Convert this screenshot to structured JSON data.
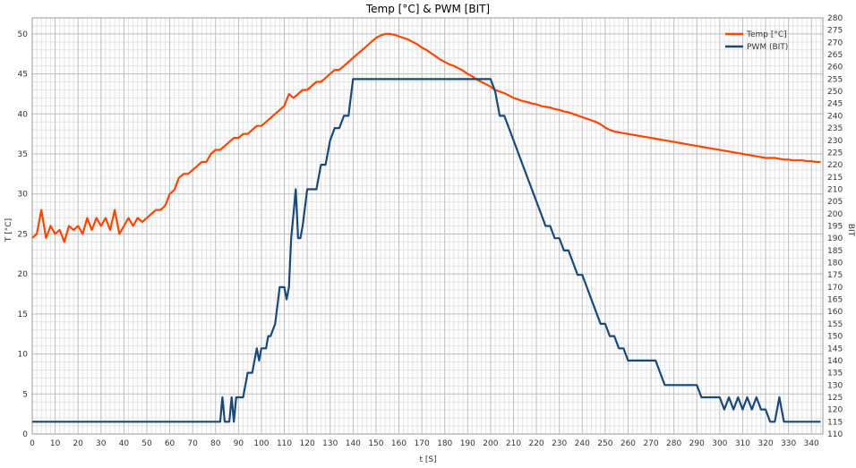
{
  "chart_data": {
    "type": "line",
    "title": "Temp [°C] & PWM [BIT]",
    "xlabel": "t [S]",
    "ylabel_left": "T [°C]",
    "ylabel_right": "BIT",
    "xlim": [
      0,
      345
    ],
    "ylim_left": [
      0,
      52
    ],
    "ylim_right": [
      110,
      280
    ],
    "x_ticks": [
      0,
      10,
      20,
      30,
      40,
      50,
      60,
      70,
      80,
      90,
      100,
      110,
      120,
      130,
      140,
      150,
      160,
      170,
      180,
      190,
      200,
      210,
      220,
      230,
      240,
      250,
      260,
      270,
      280,
      290,
      300,
      310,
      320,
      330,
      340
    ],
    "y_left_ticks": [
      0,
      5,
      10,
      15,
      20,
      25,
      30,
      35,
      40,
      45,
      50
    ],
    "y_right_ticks": [
      110,
      115,
      120,
      125,
      130,
      135,
      140,
      145,
      150,
      155,
      160,
      165,
      170,
      175,
      180,
      185,
      190,
      195,
      200,
      205,
      210,
      215,
      220,
      225,
      230,
      235,
      240,
      245,
      250,
      255,
      260,
      265,
      270,
      275,
      280
    ],
    "grid": true,
    "legend_position": "top-right",
    "series": [
      {
        "name": "Temp [°C]",
        "axis": "left",
        "color": "#ff4500",
        "x": [
          0,
          2,
          4,
          6,
          8,
          10,
          12,
          14,
          16,
          18,
          20,
          22,
          24,
          26,
          28,
          30,
          32,
          34,
          36,
          38,
          40,
          42,
          44,
          46,
          48,
          50,
          52,
          54,
          56,
          58,
          60,
          62,
          64,
          66,
          68,
          70,
          72,
          74,
          76,
          78,
          80,
          82,
          84,
          86,
          88,
          90,
          92,
          94,
          96,
          98,
          100,
          102,
          104,
          106,
          108,
          110,
          112,
          114,
          116,
          118,
          120,
          122,
          124,
          126,
          128,
          130,
          132,
          134,
          136,
          138,
          140,
          142,
          144,
          146,
          148,
          150,
          152,
          154,
          156,
          158,
          160,
          162,
          164,
          166,
          168,
          170,
          172,
          174,
          176,
          178,
          180,
          182,
          184,
          186,
          188,
          190,
          192,
          194,
          196,
          198,
          200,
          202,
          204,
          206,
          208,
          210,
          212,
          214,
          216,
          218,
          220,
          222,
          224,
          226,
          228,
          230,
          232,
          234,
          236,
          238,
          240,
          242,
          244,
          246,
          248,
          250,
          252,
          254,
          256,
          258,
          260,
          262,
          264,
          266,
          268,
          270,
          272,
          274,
          276,
          278,
          280,
          282,
          284,
          286,
          288,
          290,
          292,
          294,
          296,
          298,
          300,
          302,
          304,
          306,
          308,
          310,
          312,
          314,
          316,
          318,
          320,
          322,
          324,
          326,
          328,
          330,
          332,
          334,
          336,
          338,
          340,
          342,
          344
        ],
        "values": [
          24.5,
          25,
          28,
          24.5,
          26,
          25,
          25.5,
          24,
          26,
          25.5,
          26,
          25,
          27,
          25.5,
          27,
          26,
          27,
          25.5,
          28,
          25,
          26,
          27,
          26,
          27,
          26.5,
          27,
          27.5,
          28,
          28,
          28.5,
          30,
          30.5,
          32,
          32.5,
          32.5,
          33,
          33.5,
          34,
          34,
          35,
          35.5,
          35.5,
          36,
          36.5,
          37,
          37,
          37.5,
          37.5,
          38,
          38.5,
          38.5,
          39,
          39.5,
          40,
          40.5,
          41,
          42.5,
          42,
          42.5,
          43,
          43,
          43.5,
          44,
          44,
          44.5,
          45,
          45.5,
          45.5,
          46,
          46.5,
          47,
          47.5,
          48,
          48.5,
          49,
          49.5,
          49.8,
          50,
          50,
          49.9,
          49.7,
          49.5,
          49.3,
          49,
          48.7,
          48.3,
          48,
          47.6,
          47.2,
          46.8,
          46.5,
          46.2,
          46,
          45.7,
          45.4,
          45,
          44.7,
          44.3,
          44,
          43.7,
          43.4,
          43,
          42.8,
          42.6,
          42.3,
          42,
          41.8,
          41.6,
          41.5,
          41.3,
          41.2,
          41,
          40.9,
          40.8,
          40.6,
          40.5,
          40.3,
          40.2,
          40,
          39.8,
          39.6,
          39.4,
          39.2,
          39,
          38.7,
          38.3,
          38,
          37.8,
          37.7,
          37.6,
          37.5,
          37.4,
          37.3,
          37.2,
          37.1,
          37,
          36.9,
          36.8,
          36.7,
          36.6,
          36.5,
          36.4,
          36.3,
          36.2,
          36.1,
          36,
          35.9,
          35.8,
          35.7,
          35.6,
          35.5,
          35.4,
          35.3,
          35.2,
          35.1,
          35,
          34.9,
          34.8,
          34.7,
          34.6,
          34.5,
          34.5,
          34.5,
          34.4,
          34.3,
          34.3,
          34.2,
          34.2,
          34.2,
          34.1,
          34.1,
          34,
          34
        ],
        "values_note_ignore": null
      },
      {
        "name": "PWM (BIT)",
        "axis": "right",
        "color": "#17497a",
        "x": [
          0,
          82,
          83,
          84,
          85,
          86,
          87,
          88,
          89,
          90,
          92,
          94,
          96,
          98,
          99,
          100,
          101,
          102,
          103,
          104,
          106,
          108,
          109,
          110,
          111,
          112,
          113,
          114,
          115,
          116,
          117,
          118,
          120,
          122,
          124,
          126,
          128,
          130,
          132,
          134,
          136,
          138,
          140,
          200,
          202,
          204,
          206,
          208,
          210,
          212,
          214,
          216,
          218,
          220,
          222,
          224,
          226,
          228,
          230,
          232,
          234,
          236,
          238,
          240,
          242,
          244,
          246,
          248,
          250,
          252,
          254,
          256,
          258,
          260,
          262,
          264,
          266,
          268,
          270,
          272,
          274,
          276,
          278,
          280,
          282,
          284,
          286,
          288,
          290,
          292,
          294,
          296,
          298,
          300,
          302,
          304,
          306,
          308,
          310,
          312,
          314,
          316,
          318,
          320,
          322,
          324,
          326,
          328,
          330,
          340,
          344
        ],
        "values": [
          115,
          115,
          125,
          115,
          115,
          115,
          125,
          115,
          125,
          125,
          125,
          135,
          135,
          145,
          140,
          145,
          145,
          145,
          150,
          150,
          155,
          170,
          170,
          170,
          165,
          170,
          190,
          200,
          210,
          190,
          190,
          195,
          210,
          210,
          210,
          220,
          220,
          230,
          235,
          235,
          240,
          240,
          255,
          255,
          250,
          240,
          240,
          235,
          230,
          225,
          220,
          215,
          210,
          205,
          200,
          195,
          195,
          190,
          190,
          185,
          185,
          180,
          175,
          175,
          170,
          165,
          160,
          155,
          155,
          150,
          150,
          145,
          145,
          140,
          140,
          140,
          140,
          140,
          140,
          140,
          135,
          130,
          130,
          130,
          130,
          130,
          130,
          130,
          130,
          125,
          125,
          125,
          125,
          125,
          120,
          125,
          120,
          125,
          120,
          125,
          120,
          125,
          120,
          120,
          115,
          115,
          125,
          115,
          115,
          115,
          115
        ],
        "values_note_ignore": null
      }
    ]
  }
}
